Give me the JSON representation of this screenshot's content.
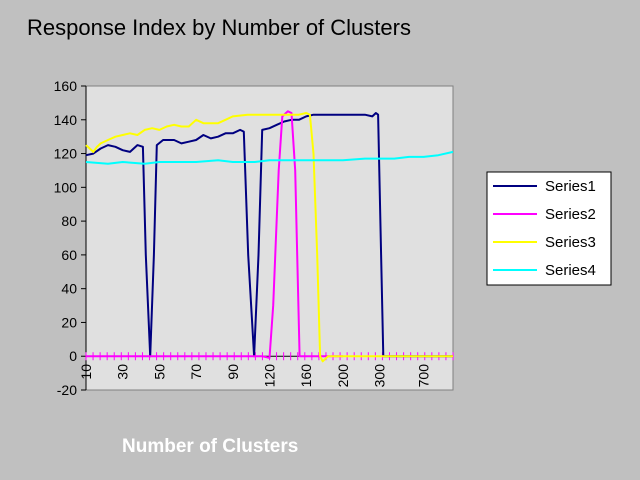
{
  "chart_data": {
    "type": "line",
    "title": "Response Index by Number of Clusters",
    "xlabel": "Number of Clusters",
    "ylabel": "",
    "ylim": [
      -20,
      160
    ],
    "yticks": [
      -20,
      0,
      20,
      40,
      60,
      80,
      100,
      120,
      140,
      160
    ],
    "xlim": [
      0,
      100
    ],
    "x_tick_labels": [
      {
        "x": 0,
        "label": "10"
      },
      {
        "x": 10,
        "label": "30"
      },
      {
        "x": 20,
        "label": "50"
      },
      {
        "x": 30,
        "label": "70"
      },
      {
        "x": 40,
        "label": "90"
      },
      {
        "x": 50,
        "label": "120"
      },
      {
        "x": 60,
        "label": "160"
      },
      {
        "x": 70,
        "label": "200"
      },
      {
        "x": 80,
        "label": "300"
      },
      {
        "x": 92,
        "label": "700"
      }
    ],
    "minor_tick_count": 52,
    "grid": false,
    "legend_position": "right",
    "plot_background": "#e0e0e0",
    "series": [
      {
        "name": "Series1",
        "color": "#000080",
        "points": [
          [
            0,
            119
          ],
          [
            2,
            120
          ],
          [
            4,
            123
          ],
          [
            6,
            125
          ],
          [
            8,
            124
          ],
          [
            10,
            122
          ],
          [
            12,
            121
          ],
          [
            14,
            125
          ],
          [
            15.5,
            124
          ],
          [
            16.3,
            60
          ],
          [
            17.5,
            0
          ],
          [
            18.5,
            60
          ],
          [
            19.3,
            125
          ],
          [
            21,
            128
          ],
          [
            24,
            128
          ],
          [
            26,
            126
          ],
          [
            28,
            127
          ],
          [
            30,
            128
          ],
          [
            32,
            131
          ],
          [
            34,
            129
          ],
          [
            36,
            130
          ],
          [
            38,
            132
          ],
          [
            40,
            132
          ],
          [
            42,
            134
          ],
          [
            43,
            133
          ],
          [
            44.2,
            60
          ],
          [
            45.8,
            0
          ],
          [
            47,
            60
          ],
          [
            48,
            134
          ],
          [
            50,
            135
          ],
          [
            52,
            137
          ],
          [
            54,
            139
          ],
          [
            56,
            140
          ],
          [
            58,
            140
          ],
          [
            60,
            142
          ],
          [
            62,
            143
          ],
          [
            66,
            143
          ],
          [
            70,
            143
          ],
          [
            74,
            143
          ],
          [
            76,
            143
          ],
          [
            78,
            142
          ],
          [
            79,
            144
          ],
          [
            79.6,
            143
          ],
          [
            80.4,
            60
          ],
          [
            81,
            0
          ],
          [
            84,
            0
          ],
          [
            88,
            0
          ],
          [
            92,
            0
          ],
          [
            96,
            0
          ],
          [
            100,
            0
          ]
        ]
      },
      {
        "name": "Series2",
        "color": "#ff00ff",
        "points": [
          [
            0,
            0
          ],
          [
            10,
            0
          ],
          [
            20,
            0
          ],
          [
            30,
            0
          ],
          [
            40,
            0
          ],
          [
            48,
            0
          ],
          [
            50,
            -1
          ],
          [
            51,
            30
          ],
          [
            52.5,
            110
          ],
          [
            53.5,
            142
          ],
          [
            55,
            145
          ],
          [
            56,
            144
          ],
          [
            57,
            110
          ],
          [
            58.2,
            0
          ],
          [
            60,
            0
          ],
          [
            66,
            0
          ],
          [
            70,
            0
          ]
        ]
      },
      {
        "name": "Series3",
        "color": "#ffff00",
        "points": [
          [
            0,
            125
          ],
          [
            1,
            123
          ],
          [
            2,
            121
          ],
          [
            3,
            124
          ],
          [
            4,
            126
          ],
          [
            6,
            128
          ],
          [
            8,
            130
          ],
          [
            10,
            131
          ],
          [
            12,
            132
          ],
          [
            14,
            131
          ],
          [
            16,
            134
          ],
          [
            18,
            135
          ],
          [
            20,
            134
          ],
          [
            22,
            136
          ],
          [
            24,
            137
          ],
          [
            26,
            136
          ],
          [
            28,
            136
          ],
          [
            30,
            140
          ],
          [
            32,
            138
          ],
          [
            34,
            138
          ],
          [
            36,
            138
          ],
          [
            38,
            140
          ],
          [
            40,
            142
          ],
          [
            44,
            143
          ],
          [
            50,
            143
          ],
          [
            56,
            143
          ],
          [
            58,
            143
          ],
          [
            60,
            144
          ],
          [
            61,
            143
          ],
          [
            62,
            120
          ],
          [
            63,
            60
          ],
          [
            63.8,
            0
          ],
          [
            64.5,
            -3
          ],
          [
            66,
            0
          ],
          [
            70,
            0
          ],
          [
            80,
            0
          ],
          [
            90,
            0
          ],
          [
            100,
            0
          ]
        ]
      },
      {
        "name": "Series4",
        "color": "#00ffff",
        "points": [
          [
            0,
            115
          ],
          [
            6,
            114
          ],
          [
            10,
            115
          ],
          [
            16,
            114
          ],
          [
            20,
            115
          ],
          [
            26,
            115
          ],
          [
            30,
            115
          ],
          [
            36,
            116
          ],
          [
            40,
            115
          ],
          [
            46,
            115
          ],
          [
            50,
            116
          ],
          [
            56,
            116
          ],
          [
            60,
            116
          ],
          [
            66,
            116
          ],
          [
            70,
            116
          ],
          [
            76,
            117
          ],
          [
            80,
            117
          ],
          [
            84,
            117
          ],
          [
            88,
            118
          ],
          [
            92,
            118
          ],
          [
            96,
            119
          ],
          [
            100,
            121
          ]
        ]
      }
    ]
  }
}
